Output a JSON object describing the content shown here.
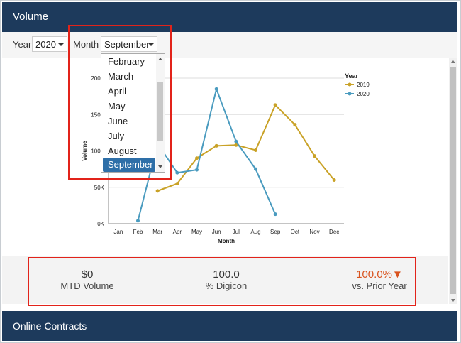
{
  "header": {
    "title": "Volume"
  },
  "filters": {
    "year_label": "Year",
    "year_value": "2020",
    "month_label": "Month",
    "month_value": "September"
  },
  "month_dropdown": {
    "options": [
      "February",
      "March",
      "April",
      "May",
      "June",
      "July",
      "August",
      "September"
    ],
    "selected": "September"
  },
  "chart_data": {
    "type": "line",
    "categories": [
      "Jan",
      "Feb",
      "Mar",
      "Apr",
      "May",
      "Jun",
      "Jul",
      "Aug",
      "Sep",
      "Oct",
      "Nov",
      "Dec"
    ],
    "xlabel": "Month",
    "ylabel": "Volume",
    "ylim": [
      0,
      200000
    ],
    "yticks": [
      "0K",
      "50K",
      "100K",
      "150K",
      "200K"
    ],
    "legend_title": "Year",
    "legend_position": "top-right",
    "series": [
      {
        "name": "2019",
        "color": "#c9a227",
        "values": [
          null,
          null,
          45000,
          55000,
          90000,
          107000,
          108000,
          101000,
          163000,
          136000,
          93000,
          60000
        ]
      },
      {
        "name": "2020",
        "color": "#4a9bbf",
        "values": [
          null,
          4000,
          110000,
          70000,
          74000,
          185000,
          113000,
          75000,
          13000,
          null,
          null,
          null
        ]
      }
    ]
  },
  "stats": {
    "mtd": {
      "value": "$0",
      "label": "MTD Volume"
    },
    "digicon": {
      "value": "100.0",
      "label": "% Digicon"
    },
    "prior": {
      "value": "100.0%▼",
      "label": "vs. Prior Year",
      "color": "#d9531e"
    }
  },
  "footer": {
    "title": "Online Contracts"
  }
}
